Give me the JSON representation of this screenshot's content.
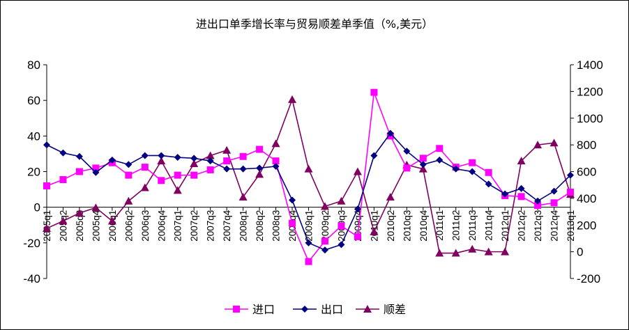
{
  "chart_data": {
    "type": "line",
    "title": "进出口单季增长率与贸易顺差单季值（%,美元）",
    "categories": [
      "2005q1",
      "2005q2",
      "2005q3",
      "2005q4",
      "2006q1",
      "2006q2",
      "2006q3",
      "2006q4",
      "2007q1",
      "2007q2",
      "2007q3",
      "2007q4",
      "2008q1",
      "2008q2",
      "2008q3",
      "2008q4",
      "2009q1",
      "2009q2",
      "2009q3",
      "2009q4",
      "2010q1",
      "2010q2",
      "2010q3",
      "2010q4",
      "2011q1",
      "2011q2",
      "2011q3",
      "2011q4",
      "2012q1",
      "2012q2",
      "2012q3",
      "2012q4",
      "2013q1"
    ],
    "y_left": {
      "min": -40,
      "max": 80,
      "step": 20,
      "ticks": [
        "80",
        "60",
        "40",
        "20",
        "0",
        "-20",
        "-40"
      ]
    },
    "y_right": {
      "min": -200,
      "max": 1400,
      "step": 200,
      "ticks": [
        "1400",
        "1200",
        "1000",
        "800",
        "600",
        "400",
        "200",
        "0",
        "-200"
      ]
    },
    "series": [
      {
        "name": "进口",
        "axis": "left",
        "color": "#FF00FF",
        "marker": "square",
        "values": [
          12,
          15.5,
          20,
          22,
          25,
          18,
          22.5,
          15,
          18,
          18,
          21,
          26,
          28.5,
          32.5,
          26,
          -9,
          -30.5,
          -19,
          -10.5,
          -16.5,
          64.5,
          40,
          22,
          27.5,
          33,
          22.5,
          25,
          19.5,
          6.5,
          6,
          1,
          2.5,
          8.5
        ]
      },
      {
        "name": "出口",
        "axis": "left",
        "color": "#000080",
        "marker": "diamond",
        "values": [
          35,
          30.5,
          28.5,
          19.5,
          26.5,
          24,
          29,
          29,
          28,
          27.5,
          26,
          21.5,
          21.5,
          22,
          23,
          4,
          -20,
          -24,
          -21,
          -1,
          29,
          41.5,
          31.5,
          24,
          26.5,
          21.5,
          20,
          13,
          7.5,
          10.5,
          3.5,
          9,
          18
        ]
      },
      {
        "name": "顺差",
        "axis": "right",
        "color": "#800060",
        "marker": "triangle",
        "values": [
          175,
          230,
          290,
          330,
          230,
          380,
          480,
          680,
          460,
          660,
          720,
          760,
          410,
          580,
          810,
          1140,
          620,
          340,
          380,
          600,
          150,
          410,
          650,
          620,
          -10,
          -10,
          20,
          0,
          0,
          680,
          800,
          815,
          430
        ]
      }
    ],
    "legend": {
      "position": "bottom",
      "items": [
        "进口",
        "出口",
        "顺差"
      ]
    }
  }
}
